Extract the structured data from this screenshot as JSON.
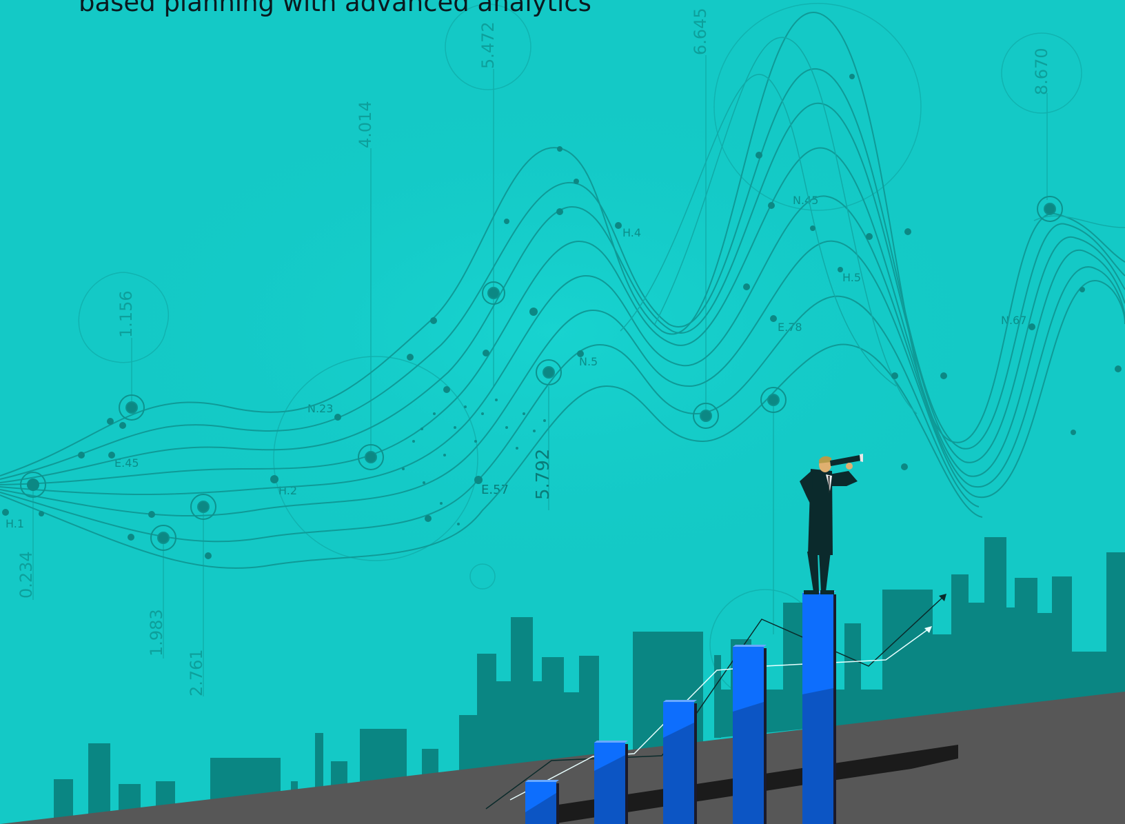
{
  "headline": "based planning with advanced analytics",
  "scale_values": [
    "5.472",
    "6.645",
    "8.670",
    "4.014",
    "1.156",
    "0.234",
    "1.983",
    "2.761",
    "5.792"
  ],
  "node_labels": [
    "N.45",
    "H.4",
    "H.5",
    "E.78",
    "N.67",
    "N.23",
    "E.45",
    "H.2",
    "H.1",
    "E.57",
    "N.5"
  ],
  "colors": {
    "background": "#14c9c6",
    "skyline": "#0a8683",
    "ground": "#5a5a5a",
    "bar_light": "#0d6efd",
    "bar_dark": "#0c55c4",
    "figure_suit": "#0b2a2c"
  }
}
